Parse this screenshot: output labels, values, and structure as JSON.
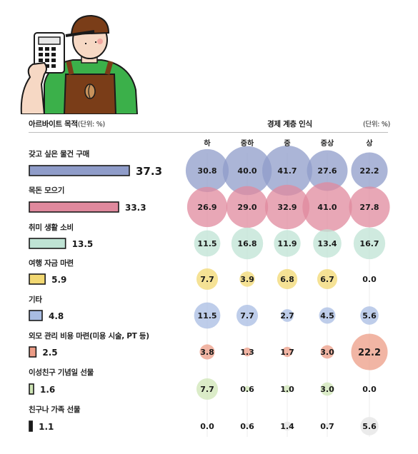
{
  "header": {
    "left_title": "아르바이트 목적",
    "left_unit": "(단위: %)",
    "mid_title": "경제 계층 인식",
    "right_unit": "(단위: %)"
  },
  "colors": {
    "blue": "#8f9cc9",
    "pink": "#e0899d",
    "mint": "#bfe3d4",
    "yellow": "#f2d872",
    "lightblue": "#a8bce3",
    "salmon": "#ec9c86",
    "green": "#cfe6b6",
    "black": "#1a1a1a"
  },
  "illustration": {
    "description_icon": "worker-with-calculator-illustration"
  },
  "chart_data": {
    "type": "bubble",
    "title": "",
    "columns": [
      "하",
      "중하",
      "중",
      "중상",
      "상"
    ],
    "rows": [
      {
        "name": "갖고 싶은 물건 구매",
        "total": 37.3,
        "color": "blue",
        "values": [
          30.8,
          40.0,
          41.7,
          27.6,
          22.2
        ]
      },
      {
        "name": "목돈 모으기",
        "total": 33.3,
        "color": "pink",
        "values": [
          26.9,
          29.0,
          32.9,
          41.0,
          27.8
        ]
      },
      {
        "name": "취미 생활 소비",
        "total": 13.5,
        "color": "mint",
        "values": [
          11.5,
          16.8,
          11.9,
          13.4,
          16.7
        ]
      },
      {
        "name": "여행 자금 마련",
        "total": 5.9,
        "color": "yellow",
        "values": [
          7.7,
          3.9,
          6.8,
          6.7,
          0.0
        ]
      },
      {
        "name": "기타",
        "total": 4.8,
        "color": "lightblue",
        "values": [
          11.5,
          7.7,
          2.7,
          4.5,
          5.6
        ]
      },
      {
        "name": "외모 관리 비용 마련(미용 시술, PT 등)",
        "total": 2.5,
        "color": "salmon",
        "values": [
          3.8,
          1.3,
          1.7,
          3.0,
          22.2
        ]
      },
      {
        "name": "이성친구 기념일 선물",
        "total": 1.6,
        "color": "green",
        "values": [
          7.7,
          0.6,
          1.0,
          3.0,
          0.0
        ]
      },
      {
        "name": "친구나 가족 선물",
        "total": 1.1,
        "color": "black",
        "values": [
          0.0,
          0.6,
          1.4,
          0.7,
          5.6
        ]
      }
    ],
    "display": {
      "totals": [
        "37.3",
        "33.3",
        "13.5",
        "5.9",
        "4.8",
        "2.5",
        "1.6",
        "1.1"
      ],
      "cells": [
        [
          "30.8",
          "40.0",
          "41.7",
          "27.6",
          "22.2"
        ],
        [
          "26.9",
          "29.0",
          "32.9",
          "41.0",
          "27.8"
        ],
        [
          "11.5",
          "16.8",
          "11.9",
          "13.4",
          "16.7"
        ],
        [
          "7.7",
          "3.9",
          "6.8",
          "6.7",
          "0.0"
        ],
        [
          "11.5",
          "7.7",
          "2.7",
          "4.5",
          "5.6"
        ],
        [
          "3.8",
          "1.3",
          "1.7",
          "3.0",
          "22.2"
        ],
        [
          "7.7",
          "0.6",
          "1.0",
          "3.0",
          "0.0"
        ],
        [
          "0.0",
          "0.6",
          "1.4",
          "0.7",
          "5.6"
        ]
      ]
    }
  }
}
